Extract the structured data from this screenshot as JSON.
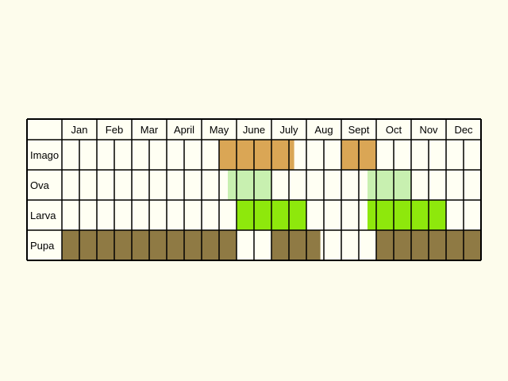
{
  "months": [
    "Jan",
    "Feb",
    "Mar",
    "April",
    "May",
    "June",
    "July",
    "Aug",
    "Sept",
    "Oct",
    "Nov",
    "Dec"
  ],
  "stages": [
    {
      "label": "Imago",
      "color": "#daa655"
    },
    {
      "label": "Ova",
      "color": "#c8f0b0"
    },
    {
      "label": "Larva",
      "color": "#8ee80c"
    },
    {
      "label": "Pupa",
      "color": "#8f7a44"
    }
  ],
  "activity": {
    "Imago": [
      [
        9,
        13.3
      ],
      [
        16,
        18
      ]
    ],
    "Ova": [
      [
        9.5,
        12
      ],
      [
        17.5,
        20
      ]
    ],
    "Larva": [
      [
        10,
        14
      ],
      [
        17.5,
        22
      ]
    ],
    "Pupa": [
      [
        0,
        10
      ],
      [
        12,
        14.8
      ],
      [
        18,
        24
      ]
    ]
  },
  "colors": {
    "background": "#fdfcec",
    "cell_fill": "#fffff3",
    "grid": "#000000"
  }
}
